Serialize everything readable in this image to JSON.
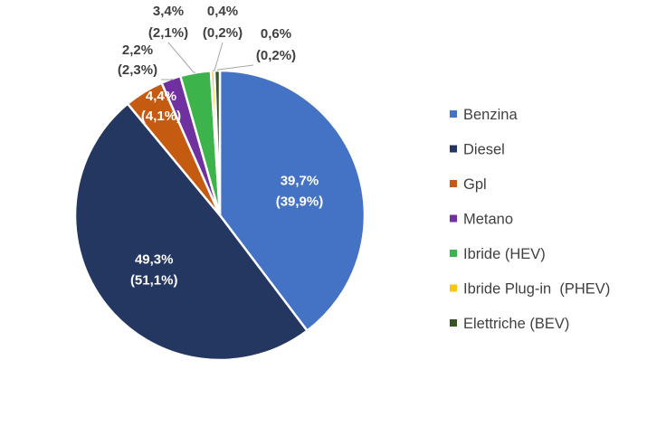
{
  "chart_data": {
    "type": "pie",
    "categories": [
      "Benzina",
      "Diesel",
      "Gpl",
      "Metano",
      "Ibride (HEV)",
      "Ibride Plug-in  (PHEV)",
      "Elettriche (BEV)"
    ],
    "values": [
      39.7,
      49.3,
      4.4,
      2.2,
      3.4,
      0.4,
      0.6
    ],
    "secondary_values": [
      39.9,
      51.1,
      4.1,
      2.3,
      2.1,
      0.2,
      0.2
    ],
    "data_labels": [
      [
        "39,7%",
        "(39,9%)"
      ],
      [
        "49,3%",
        "(51,1%)"
      ],
      [
        "4,4%",
        "(4,1%)"
      ],
      [
        "2,2%",
        "(2,3%)"
      ],
      [
        "3,4%",
        "(2,1%)"
      ],
      [
        "0,4%",
        "(0,2%)"
      ],
      [
        "0,6%",
        "(0,2%)"
      ]
    ],
    "colors": [
      "#4472c4",
      "#243761",
      "#c55a11",
      "#7030a0",
      "#3cb44b",
      "#f5c518",
      "#375623"
    ],
    "legend_position": "right"
  }
}
